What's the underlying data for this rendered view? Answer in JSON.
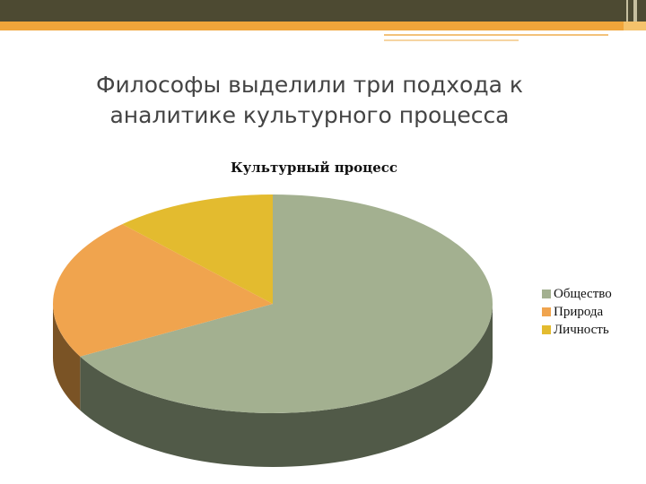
{
  "slide": {
    "title": "Философы выделили три подхода к аналитике культурного процесса"
  },
  "colors": {
    "top_bar": "#4d4a32",
    "accent": "#f0a53a"
  },
  "chart_data": {
    "type": "pie",
    "style": "3d",
    "title": "Культурный процесс",
    "categories": [
      "Общество",
      "Природа",
      "Личность"
    ],
    "values": [
      67,
      21,
      12
    ],
    "colors": [
      "#a3b090",
      "#f0a44e",
      "#e3bb2f"
    ],
    "side_colors": [
      "#515a48",
      "#7a5325",
      "#7a6318"
    ],
    "legend_position": "right"
  }
}
